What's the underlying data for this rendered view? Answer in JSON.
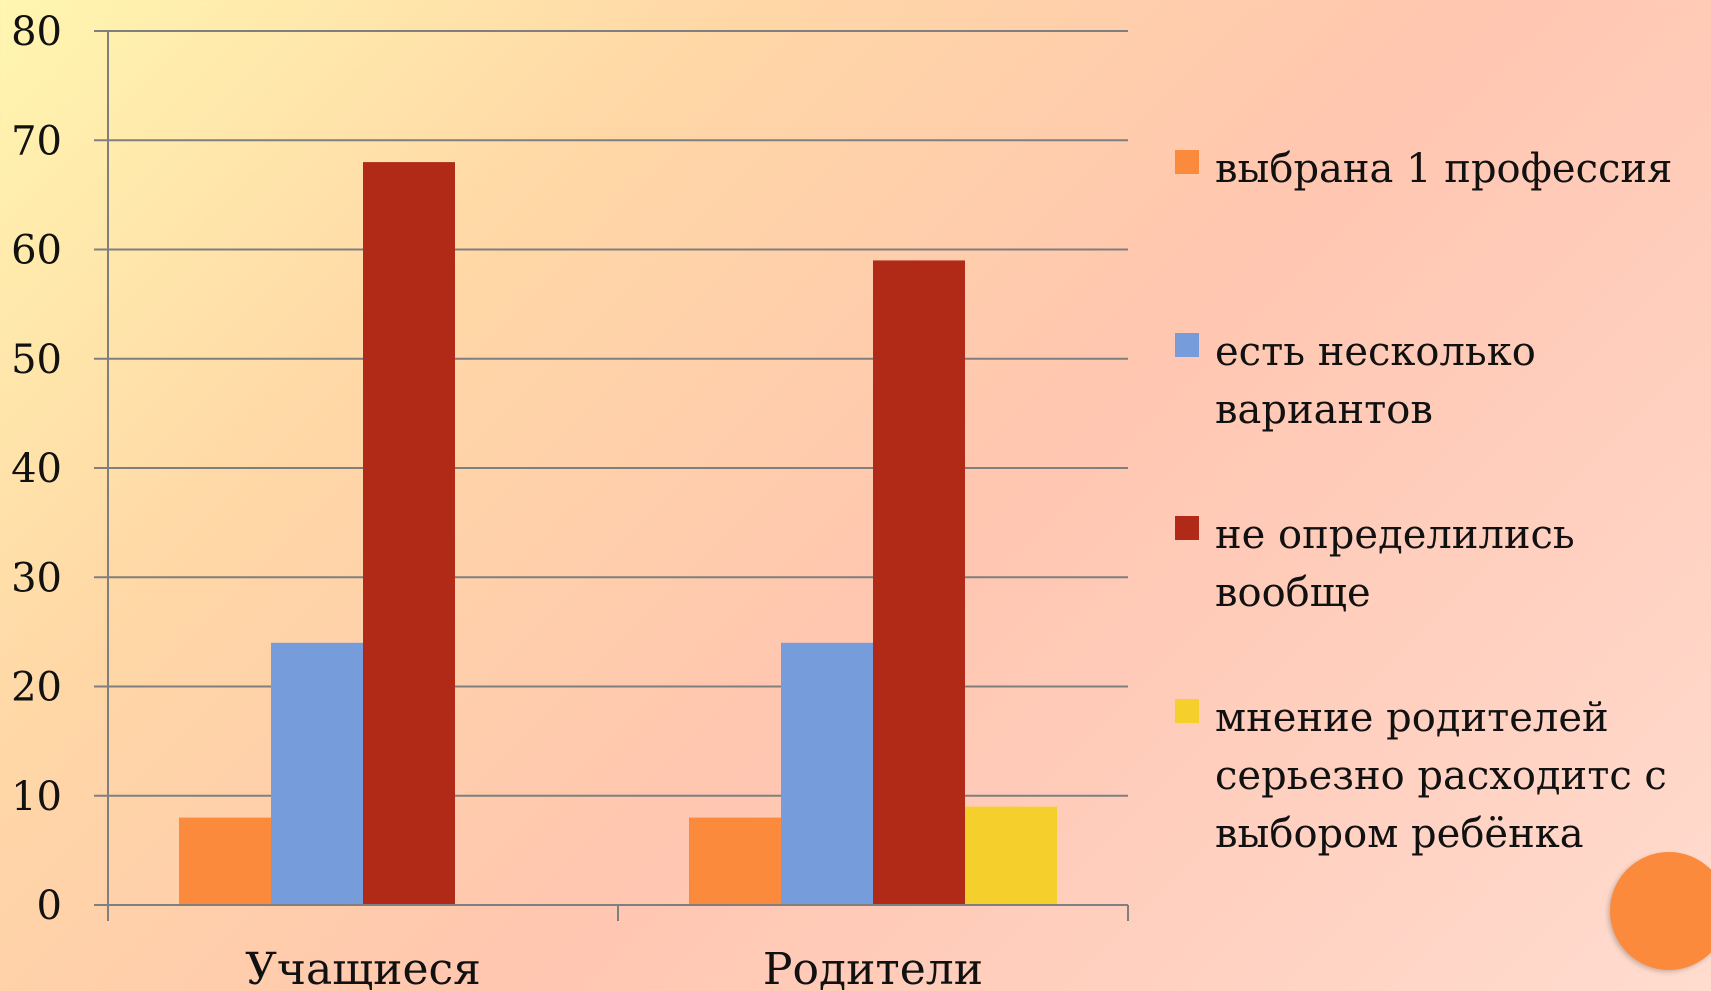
{
  "chart_data": {
    "type": "bar",
    "categories": [
      "Учащиеся",
      "Родители"
    ],
    "series": [
      {
        "name": "выбрана 1 профессия",
        "values": [
          8,
          8
        ],
        "color": "#fb8a3c"
      },
      {
        "name": "есть несколько вариантов",
        "values": [
          24,
          24
        ],
        "color": "#779cdc"
      },
      {
        "name": "не определились вообще",
        "values": [
          68,
          59
        ],
        "color": "#b02a17"
      },
      {
        "name": "мнение родителей серьезно расходитс с выбором ребёнка",
        "values": [
          null,
          9
        ],
        "color": "#f5cf2c"
      }
    ],
    "title": "",
    "xlabel": "",
    "ylabel": "",
    "ylim": [
      0,
      80
    ],
    "yticks": [
      "0",
      "10",
      "20",
      "30",
      "40",
      "50",
      "60",
      "70",
      "80"
    ],
    "grid": true,
    "legend_position": "right"
  },
  "legend": {
    "items": [
      {
        "label": "выбрана 1 профессия",
        "color": "#fb8a3c"
      },
      {
        "label": "есть несколько вариантов",
        "color": "#779cdc"
      },
      {
        "label": "не определились вообще",
        "color": "#b02a17"
      },
      {
        "label": "мнение родителей серьезно расходитс с выбором ребёнка",
        "color": "#f5cf2c"
      }
    ]
  },
  "decoration": {
    "circle_color": "#fb8a3c"
  }
}
